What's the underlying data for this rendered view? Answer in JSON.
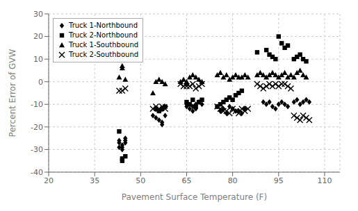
{
  "chart_data": {
    "type": "scatter",
    "xlabel": "Pavement Surface Temperature (F)",
    "ylabel": "Percent Error of GVW",
    "xlim": [
      20,
      115
    ],
    "ylim": [
      -40,
      30
    ],
    "xticks": [
      20,
      35,
      50,
      65,
      80,
      95,
      110
    ],
    "yticks": [
      -40,
      -30,
      -20,
      -10,
      0,
      10,
      20,
      30
    ],
    "grid": true,
    "legend": "upper left",
    "series": [
      {
        "name": "Truck 1-Northbound",
        "color": "#000000",
        "marker": "diamond",
        "x": [
          43,
          43,
          43,
          44,
          44,
          44,
          45,
          45,
          45,
          54,
          55,
          56,
          57,
          57,
          58,
          65,
          65,
          66,
          67,
          67,
          68,
          68,
          69,
          70,
          75,
          76,
          77,
          78,
          79,
          80,
          81,
          82,
          83,
          84,
          90,
          91,
          92,
          93,
          94,
          95,
          96,
          97,
          98,
          100,
          101,
          102,
          103,
          104,
          105
        ],
        "values": [
          -26,
          -27,
          -29,
          -30,
          -29,
          -28,
          -27,
          -26,
          -25,
          -15,
          -16,
          -17,
          -18,
          -19,
          -15,
          -10,
          -11,
          -12,
          -13,
          -11,
          -10,
          -12,
          -9,
          -10,
          -11,
          -13,
          -12,
          -14,
          -11,
          -12,
          -13,
          -13,
          -14,
          -12,
          -9,
          -10,
          -9,
          -11,
          -12,
          -10,
          -9,
          -10,
          -11,
          -9,
          -8,
          -10,
          -9,
          -8,
          -9
        ]
      },
      {
        "name": "Truck 2-Northbound",
        "color": "#000000",
        "marker": "square",
        "x": [
          43,
          44,
          44,
          45,
          55,
          56,
          57,
          58,
          65,
          66,
          67,
          68,
          69,
          70,
          75,
          76,
          77,
          78,
          79,
          80,
          81,
          82,
          83,
          88,
          91,
          92,
          93,
          94,
          95,
          96,
          97,
          98,
          100,
          101,
          102,
          103,
          104
        ],
        "values": [
          -22,
          -35,
          -34,
          -33,
          -12,
          -13,
          -12,
          -11,
          -9,
          -10,
          -8,
          -11,
          -9,
          -8,
          -11,
          -10,
          -9,
          -8,
          -7,
          -8,
          -6,
          -5,
          -4,
          13,
          14,
          12,
          11,
          10,
          20,
          17,
          15,
          16,
          10,
          11,
          12,
          10,
          9
        ]
      },
      {
        "name": "Truck 1-Southbound",
        "color": "#000000",
        "marker": "triangle",
        "x": [
          43,
          44,
          44,
          45,
          54,
          55,
          56,
          57,
          58,
          63,
          64,
          65,
          65,
          66,
          67,
          68,
          69,
          70,
          75,
          76,
          77,
          78,
          79,
          80,
          81,
          82,
          83,
          84,
          85,
          88,
          89,
          90,
          91,
          92,
          93,
          94,
          95,
          96,
          97,
          98,
          99,
          100,
          101,
          102,
          103,
          104
        ],
        "values": [
          2,
          7,
          6,
          1,
          -5,
          0,
          1,
          0,
          -1,
          0,
          1,
          -1,
          0,
          2,
          3,
          2,
          1,
          0,
          3,
          4,
          2,
          3,
          1,
          2,
          3,
          2,
          2,
          3,
          2,
          3,
          4,
          3,
          2,
          3,
          4,
          3,
          2,
          3,
          4,
          2,
          3,
          2,
          4,
          5,
          3,
          2
        ]
      },
      {
        "name": "Truck 2-Southbound",
        "color": "#000000",
        "marker": "x",
        "x": [
          43,
          44,
          45,
          54,
          55,
          56,
          57,
          58,
          63,
          64,
          65,
          66,
          67,
          68,
          69,
          70,
          75,
          76,
          77,
          78,
          79,
          80,
          81,
          82,
          83,
          84,
          85,
          88,
          89,
          90,
          91,
          92,
          93,
          94,
          95,
          96,
          97,
          98,
          99,
          100,
          101,
          102,
          103,
          104,
          105
        ],
        "values": [
          -4,
          -4,
          -3,
          -12,
          -11,
          -12,
          -11,
          -12,
          -1,
          -2,
          -2,
          -2,
          -1,
          -3,
          -2,
          -1,
          -11,
          -12,
          -13,
          -13,
          -14,
          -12,
          -13,
          -14,
          -12,
          -13,
          -12,
          -1,
          -2,
          -3,
          -2,
          -1,
          -2,
          -1,
          -2,
          -1,
          -1,
          -2,
          -3,
          -15,
          -16,
          -17,
          -15,
          -16,
          -17
        ]
      }
    ]
  }
}
